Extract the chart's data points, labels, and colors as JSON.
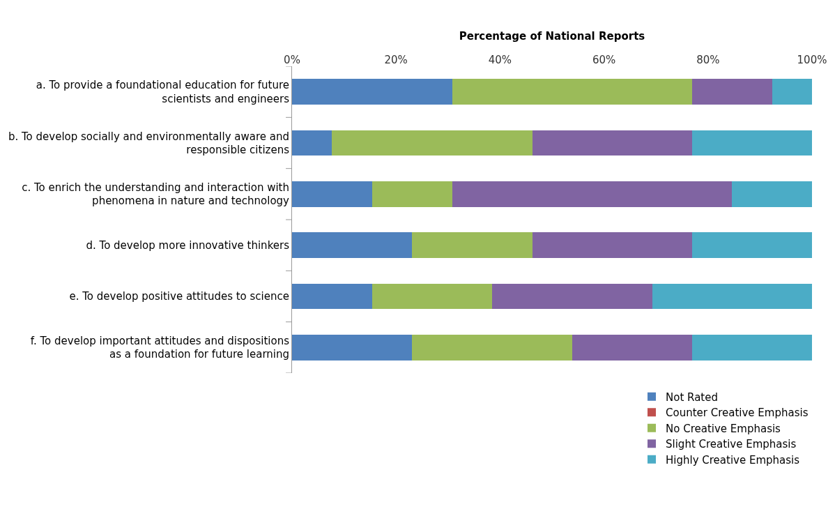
{
  "chart_data": {
    "type": "bar",
    "orientation": "horizontal",
    "stacked": true,
    "xlabel": "Percentage of National Reports",
    "categories": [
      "a. To provide a foundational education for future scientists and engineers",
      "b. To develop socially and environmentally aware and responsible citizens",
      "c. To enrich the understanding and interaction with phenomena in nature and technology",
      "d. To develop more innovative thinkers",
      "e. To develop positive attitudes to science",
      "f. To develop important attitudes and dispositions as a foundation for future learning"
    ],
    "series": [
      {
        "name": "Not Rated",
        "color": "#4f81bd",
        "values": [
          30.8,
          7.7,
          15.4,
          23.1,
          15.4,
          23.1
        ]
      },
      {
        "name": "Counter Creative Emphasis",
        "color": "#c0504d",
        "values": [
          0,
          0,
          0,
          0,
          0,
          0
        ]
      },
      {
        "name": "No Creative Emphasis",
        "color": "#9bbb59",
        "values": [
          46.2,
          38.5,
          15.4,
          23.1,
          23.1,
          30.8
        ]
      },
      {
        "name": "Slight Creative Emphasis",
        "color": "#8064a2",
        "values": [
          15.4,
          30.8,
          53.8,
          30.8,
          30.8,
          23.1
        ]
      },
      {
        "name": "Highly Creative Emphasis",
        "color": "#4bacc6",
        "values": [
          7.7,
          23.1,
          15.4,
          23.1,
          30.8,
          23.1
        ]
      }
    ],
    "xlim": [
      0,
      100
    ],
    "xticks": [
      {
        "value": 0,
        "label": "0%"
      },
      {
        "value": 20,
        "label": "20%"
      },
      {
        "value": 40,
        "label": "40%"
      },
      {
        "value": 60,
        "label": "60%"
      },
      {
        "value": 80,
        "label": "80%"
      },
      {
        "value": 100,
        "label": "100%"
      }
    ],
    "legend": "bottom right"
  }
}
